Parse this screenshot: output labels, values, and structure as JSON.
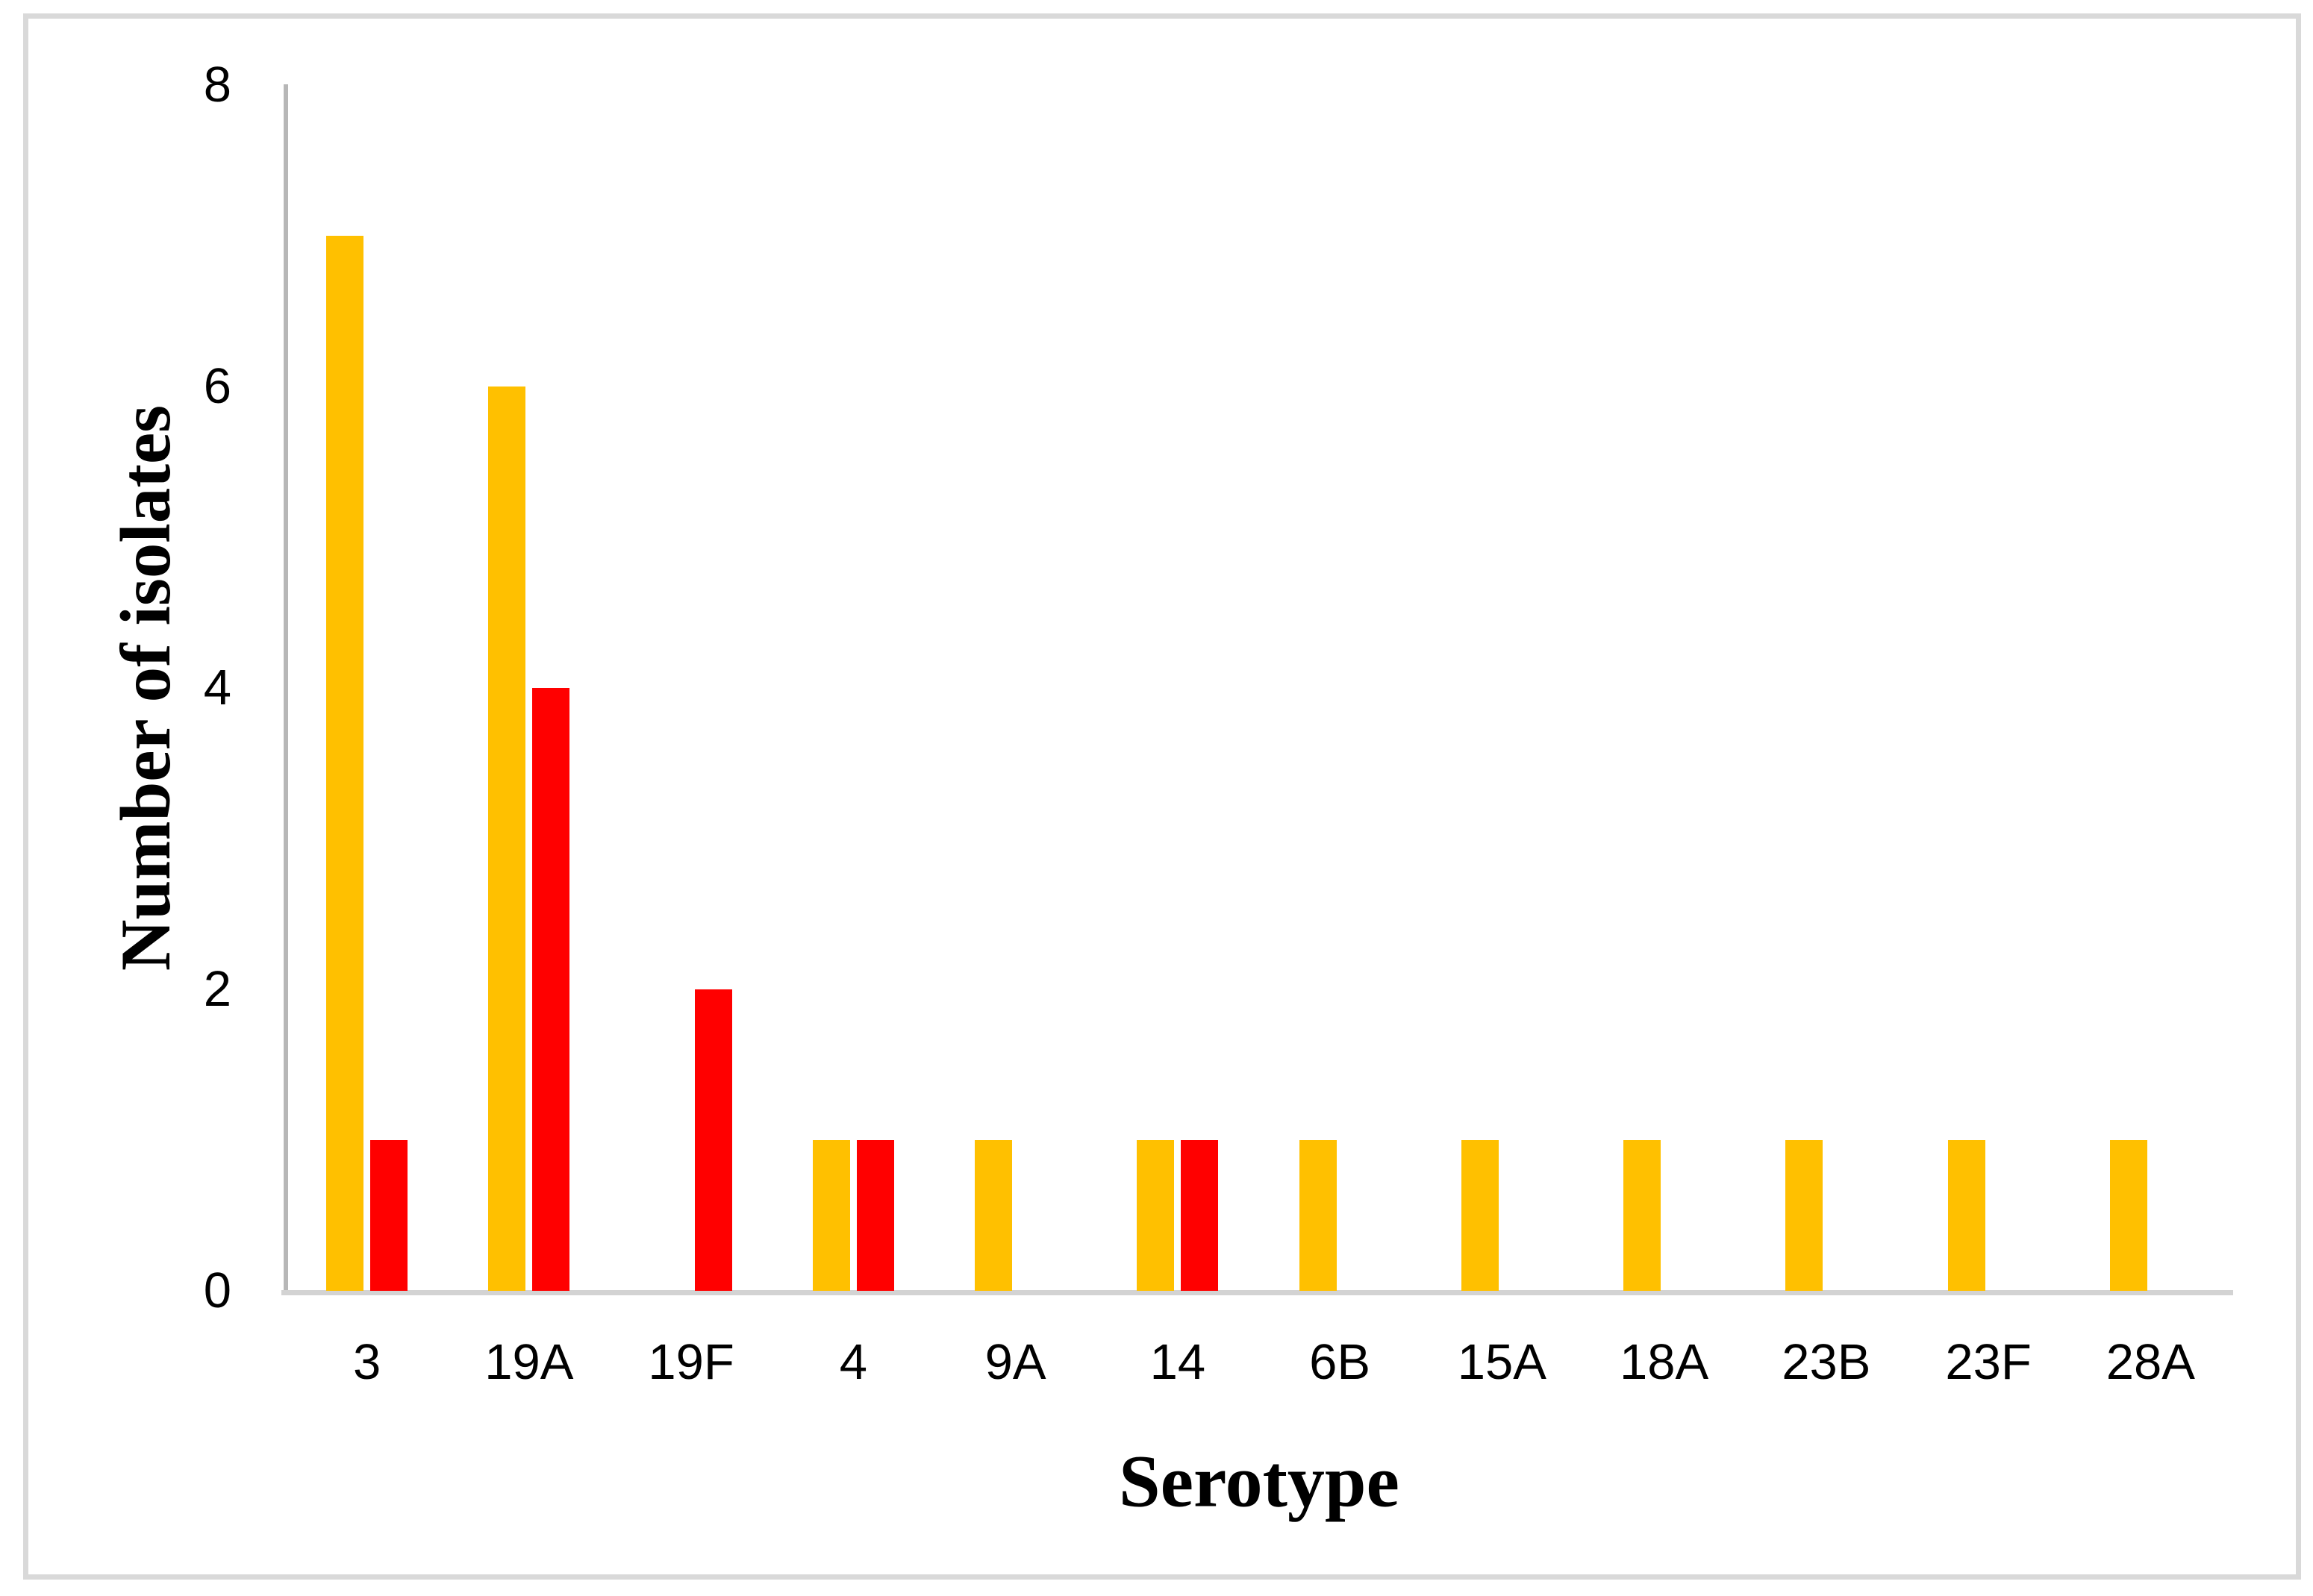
{
  "chart_data": {
    "type": "bar",
    "title": "",
    "categories": [
      "3",
      "19A",
      "19F",
      "4",
      "9A",
      "14",
      "6B",
      "15A",
      "18A",
      "23B",
      "23F",
      "28A"
    ],
    "series": [
      {
        "name": "series-1",
        "color": "#FFC000",
        "values": [
          7,
          6,
          0,
          1,
          1,
          1,
          1,
          1,
          1,
          1,
          1,
          1
        ]
      },
      {
        "name": "series-2",
        "color": "#FF0000",
        "values": [
          1,
          4,
          2,
          1,
          0,
          1,
          0,
          0,
          0,
          0,
          0,
          0
        ]
      }
    ],
    "xlabel": "Serotype",
    "ylabel": "Number of isolates",
    "ylim": [
      0,
      8
    ],
    "yticks": [
      0,
      2,
      4,
      6,
      8
    ],
    "grid": false,
    "legend": false
  },
  "colors": {
    "frame": "#d9d9d9",
    "y_axis_line": "#b7b7b7",
    "x_axis_line": "#d3d3d3",
    "text": "#000000",
    "background": "#ffffff"
  }
}
